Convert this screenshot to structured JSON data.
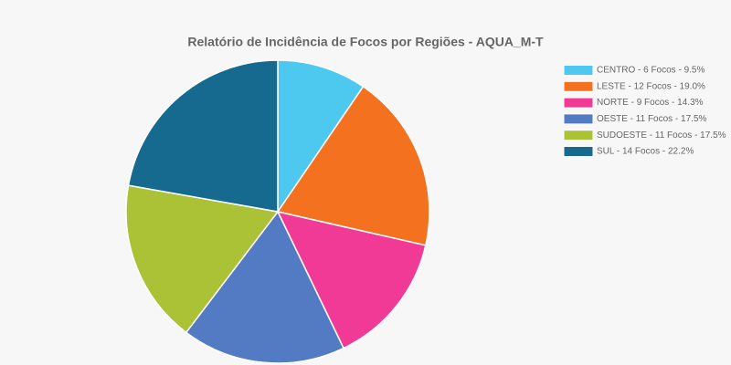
{
  "chart_data": {
    "type": "pie",
    "title": "Relatório de Incidência de Focos por Regiões - AQUA_M-T",
    "categories": [
      "CENTRO -  6 Focos - 9.5%",
      "LESTE -  12 Focos - 19.0%",
      "NORTE -  9 Focos - 14.3%",
      "OESTE -  11 Focos - 17.5%",
      "SUDOESTE -  11 Focos - 17.5%",
      "SUL -  14 Focos - 22.2%"
    ],
    "values": [
      6,
      12,
      9,
      11,
      11,
      14
    ],
    "colors": [
      "#4dc9f0",
      "#f4721f",
      "#f03a96",
      "#537bc4",
      "#acc236",
      "#166a8f"
    ],
    "legend": "top-right"
  }
}
